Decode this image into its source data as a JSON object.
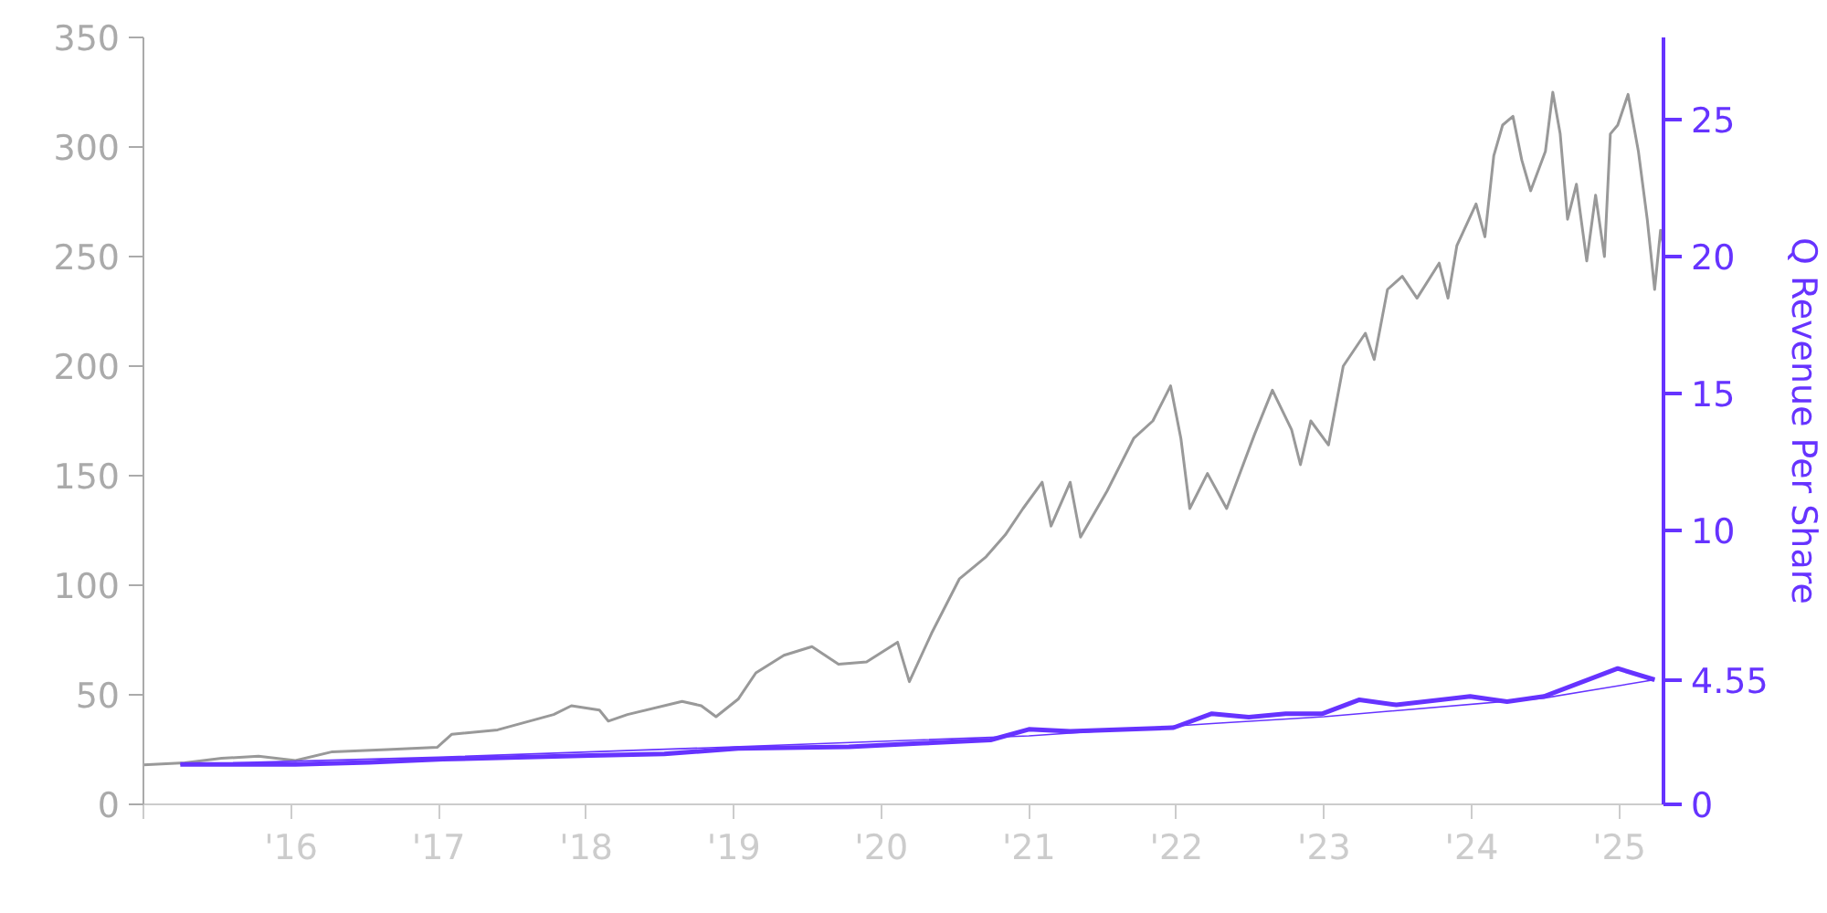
{
  "chart_data": {
    "type": "line",
    "y2label": "Q Revenue Per Share",
    "xlim": [
      2015.0,
      2025.3
    ],
    "xticks": [
      {
        "value": 2015,
        "label": null
      },
      {
        "value": 2016,
        "label": "'16"
      },
      {
        "value": 2017,
        "label": "'17"
      },
      {
        "value": 2018,
        "label": "'18"
      },
      {
        "value": 2019,
        "label": "'19"
      },
      {
        "value": 2020,
        "label": "'20"
      },
      {
        "value": 2021,
        "label": "'21"
      },
      {
        "value": 2022,
        "label": "'22"
      },
      {
        "value": 2023,
        "label": "'23"
      },
      {
        "value": 2024,
        "label": "'24"
      },
      {
        "value": 2025,
        "label": "'25"
      }
    ],
    "ylim": [
      0,
      350
    ],
    "yticks": [
      0,
      50,
      100,
      150,
      200,
      250,
      300,
      350
    ],
    "y2lim": [
      0,
      28
    ],
    "y2ticks": [
      0,
      {
        "value": 4.55,
        "label": "4.55"
      },
      10,
      15,
      20,
      25
    ],
    "grid": false,
    "series": [
      {
        "color": "#999999",
        "x": [
          2015.0,
          2015.28,
          2015.53,
          2015.78,
          2016.03,
          2016.28,
          2016.65,
          2016.99,
          2017.09,
          2017.4,
          2017.78,
          2017.9,
          2018.09,
          2018.15,
          2018.28,
          2018.65,
          2018.78,
          2018.88,
          2019.03,
          2019.15,
          2019.34,
          2019.53,
          2019.71,
          2019.9,
          2020.11,
          2020.19,
          2020.34,
          2020.53,
          2020.71,
          2020.84,
          2020.96,
          2021.09,
          2021.15,
          2021.28,
          2021.35,
          2021.53,
          2021.71,
          2021.84,
          2021.96,
          2022.03,
          2022.09,
          2022.21,
          2022.34,
          2022.53,
          2022.65,
          2022.78,
          2022.84,
          2022.91,
          2023.03,
          2023.13,
          2023.28,
          2023.34,
          2023.43,
          2023.53,
          2023.63,
          2023.78,
          2023.84,
          2023.9,
          2024.03,
          2024.09,
          2024.15,
          2024.21,
          2024.28,
          2024.34,
          2024.4,
          2024.5,
          2024.55,
          2024.6,
          2024.65,
          2024.71,
          2024.78,
          2024.84,
          2024.9,
          2024.94,
          2024.99,
          2025.06,
          2025.13,
          2025.19,
          2025.24,
          2025.28,
          2025.3
        ],
        "values": [
          18,
          19,
          21,
          22,
          20,
          24,
          25,
          26,
          32,
          34,
          41,
          45,
          43,
          38,
          41,
          47,
          45,
          40,
          48,
          60,
          68,
          72,
          64,
          65,
          74,
          56,
          78,
          103,
          113,
          123,
          135,
          147,
          127,
          147,
          122,
          143,
          167,
          175,
          191,
          167,
          135,
          151,
          135,
          169,
          189,
          171,
          155,
          175,
          164,
          200,
          215,
          203,
          235,
          241,
          231,
          247,
          231,
          255,
          274,
          259,
          296,
          310,
          314,
          294,
          280,
          298,
          325,
          306,
          267,
          283,
          248,
          278,
          250,
          306,
          310,
          324,
          298,
          267,
          235,
          262,
          255
        ]
      },
      {
        "color": "#6633ff",
        "axis": "y2",
        "x": [
          2015.25,
          2016.03,
          2016.53,
          2017.03,
          2018.03,
          2018.53,
          2019.03,
          2019.78,
          2020.28,
          2020.74,
          2021.0,
          2021.28,
          2021.98,
          2022.24,
          2022.49,
          2022.74,
          2022.99,
          2023.24,
          2023.49,
          2023.99,
          2024.24,
          2024.49,
          2024.99,
          2025.24
        ],
        "values": [
          1.46,
          1.46,
          1.53,
          1.65,
          1.78,
          1.84,
          2.04,
          2.1,
          2.23,
          2.35,
          2.74,
          2.67,
          2.8,
          3.31,
          3.18,
          3.31,
          3.31,
          3.82,
          3.63,
          3.94,
          3.75,
          3.94,
          4.96,
          4.55
        ]
      },
      {
        "color": "#6633ff",
        "axis": "y2",
        "type": "line",
        "x": [
          2015.25,
          2017.0,
          2019.0,
          2021.0,
          2022.24,
          2023.0,
          2024.49,
          2025.24
        ],
        "values": [
          1.46,
          1.72,
          2.1,
          2.5,
          2.95,
          3.2,
          3.88,
          4.55
        ]
      }
    ]
  }
}
